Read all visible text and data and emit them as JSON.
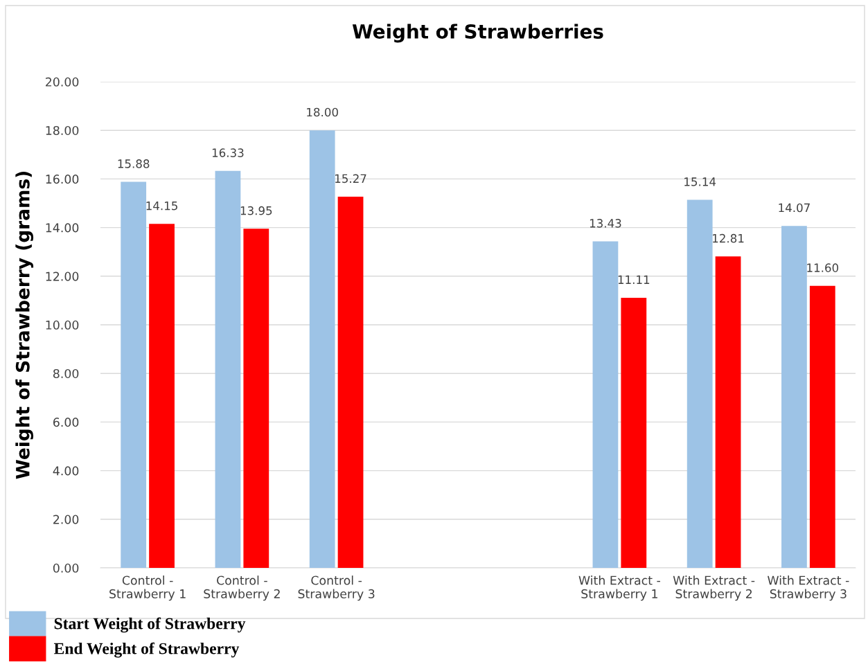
{
  "chart_data": {
    "type": "bar",
    "title": "Weight of Strawberries",
    "ylabel": "Weight of Strawberry (grams)",
    "categories": [
      "Control -\nStrawberry 1",
      "Control -\nStrawberry 2",
      "Control -\nStrawberry 3",
      null,
      null,
      "With Extract -\nStrawberry 1",
      "With Extract -\nStrawberry 2",
      "With Extract -\nStrawberry 3"
    ],
    "series": [
      {
        "name": "Start Weight of Strawberry",
        "color": "#9dc3e6",
        "values": [
          15.88,
          16.33,
          18.0,
          null,
          null,
          13.43,
          15.14,
          14.07
        ],
        "value_labels": [
          "15.88",
          "16.33",
          "18.00",
          null,
          null,
          "13.43",
          "15.14",
          "14.07"
        ]
      },
      {
        "name": "End Weight of Strawberry",
        "color": "#ff0000",
        "values": [
          14.15,
          13.95,
          15.27,
          null,
          null,
          11.11,
          12.81,
          11.6
        ],
        "value_labels": [
          "14.15",
          "13.95",
          "15.27",
          null,
          null,
          "11.11",
          "12.81",
          "11.60"
        ]
      }
    ],
    "ylim": [
      0,
      20
    ],
    "yticks": [
      {
        "value": 0,
        "label": "0.00"
      },
      {
        "value": 2,
        "label": "2.00"
      },
      {
        "value": 4,
        "label": "4.00"
      },
      {
        "value": 6,
        "label": "6.00"
      },
      {
        "value": 8,
        "label": "8.00"
      },
      {
        "value": 10,
        "label": "10.00"
      },
      {
        "value": 12,
        "label": "12.00"
      },
      {
        "value": 14,
        "label": "14.00"
      },
      {
        "value": 16,
        "label": "16.00"
      },
      {
        "value": 18,
        "label": "18.00"
      },
      {
        "value": 20,
        "label": "20.00"
      }
    ],
    "grid": "y",
    "legend": "bottom left"
  }
}
